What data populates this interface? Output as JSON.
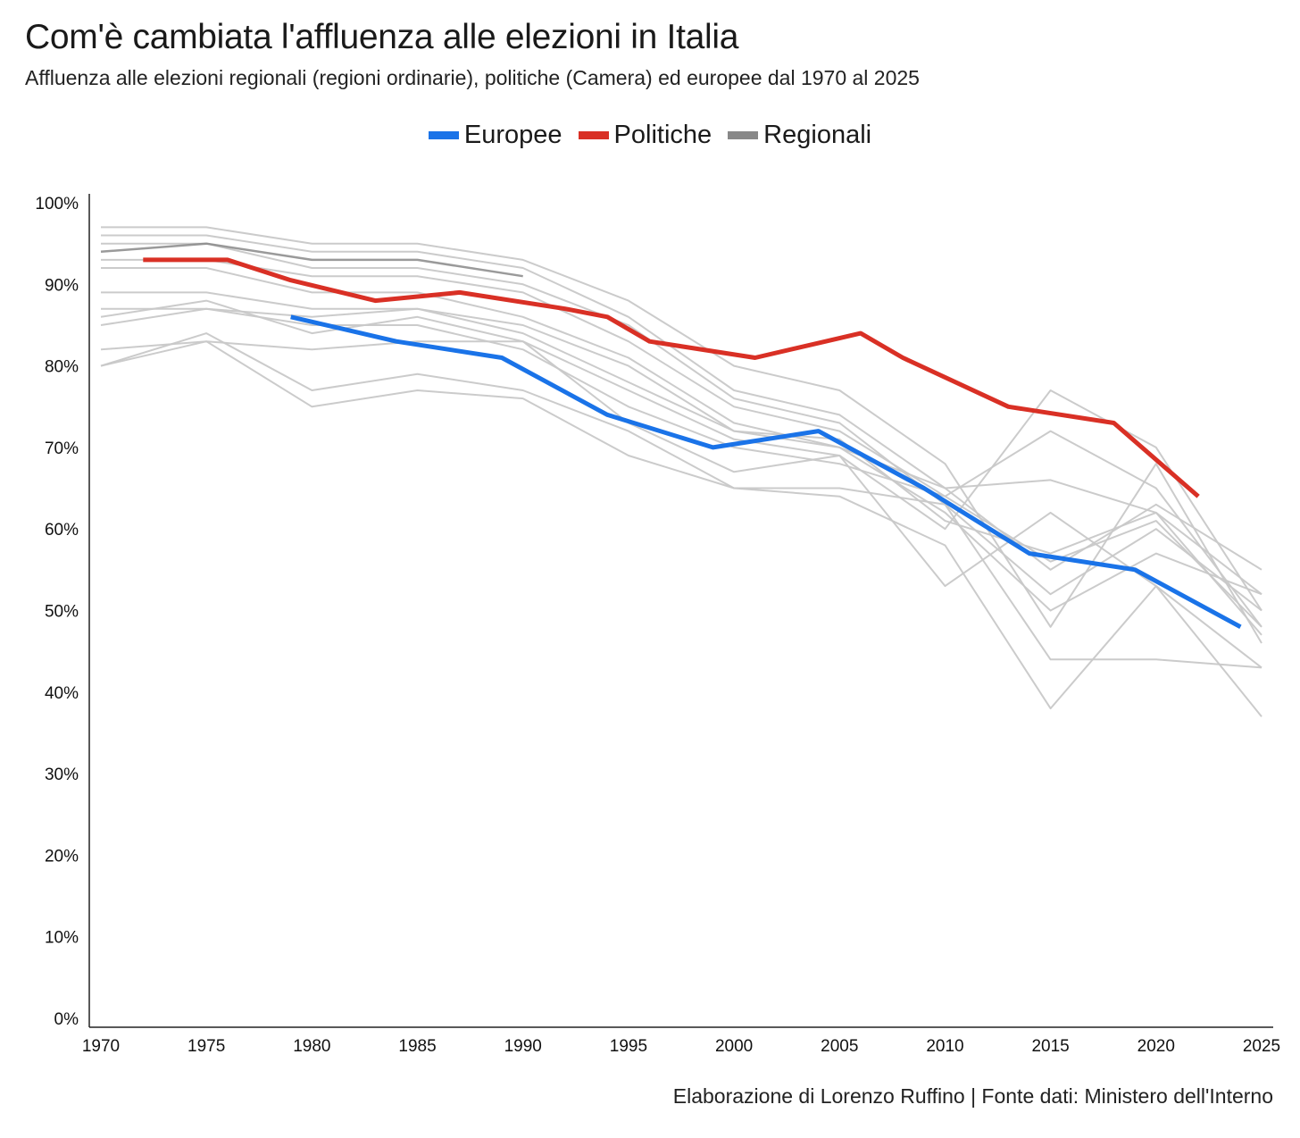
{
  "title": "Com'è cambiata l'affluenza alle elezioni in Italia",
  "subtitle": "Affluenza alle elezioni regionali (regioni ordinarie), politiche (Camera) ed europee dal 1970 al 2025",
  "source": "Elaborazione di Lorenzo Ruffino | Fonte dati: Ministero dell'Interno",
  "colors": {
    "europee": "#1a73e8",
    "politiche": "#d93025",
    "regionali": "#888888",
    "regional_lines": "#c8c8c8"
  },
  "legend": [
    {
      "label": "Europee",
      "color": "#1a73e8"
    },
    {
      "label": "Politiche",
      "color": "#d93025"
    },
    {
      "label": "Regionali",
      "color": "#888888"
    }
  ],
  "chart_data": {
    "type": "line",
    "title": "Com'è cambiata l'affluenza alle elezioni in Italia",
    "xlabel": "",
    "ylabel": "",
    "xlim": [
      1970,
      2025
    ],
    "ylim": [
      0,
      100
    ],
    "x_ticks": [
      1970,
      1975,
      1980,
      1985,
      1990,
      1995,
      2000,
      2005,
      2010,
      2015,
      2020,
      2025
    ],
    "y_ticks": [
      0,
      10,
      20,
      30,
      40,
      50,
      60,
      70,
      80,
      90,
      100
    ],
    "y_tick_labels": [
      "0%",
      "10%",
      "20%",
      "30%",
      "40%",
      "50%",
      "60%",
      "70%",
      "80%",
      "90%",
      "100%"
    ],
    "series": [
      {
        "name": "Europee",
        "color": "#1a73e8",
        "x": [
          1979,
          1984,
          1989,
          1994,
          1999,
          2004,
          2009,
          2014,
          2019,
          2024
        ],
        "values": [
          86,
          83,
          81,
          74,
          70,
          72,
          65,
          57,
          55,
          48
        ]
      },
      {
        "name": "Politiche",
        "color": "#d93025",
        "x": [
          1972,
          1976,
          1979,
          1983,
          1987,
          1992,
          1994,
          1996,
          2001,
          2006,
          2008,
          2013,
          2018,
          2022
        ],
        "values": [
          93,
          93,
          90.5,
          88,
          89,
          87,
          86,
          83,
          81,
          84,
          81,
          75,
          73,
          64
        ]
      },
      {
        "name": "Regionali",
        "color": "#888888",
        "x": [
          1970,
          1975,
          1980,
          1985,
          1990
        ],
        "values": [
          94,
          95,
          93,
          93,
          91
        ]
      },
      {
        "name": "Regionali",
        "color": "#c8c8c8",
        "x": [
          1970,
          1975,
          1980,
          1985,
          1990,
          1995,
          2000,
          2005,
          2010,
          2015,
          2020,
          2025
        ],
        "values": [
          97,
          97,
          95,
          95,
          93,
          88,
          80,
          77,
          68,
          48,
          68,
          46
        ]
      },
      {
        "name": "Regionali",
        "color": "#c8c8c8",
        "x": [
          1970,
          1975,
          1980,
          1985,
          1990,
          1995,
          2000,
          2005,
          2010,
          2015,
          2020,
          2025
        ],
        "values": [
          96,
          96,
          94,
          94,
          92,
          86,
          77,
          74,
          65,
          55,
          63,
          55
        ]
      },
      {
        "name": "Regionali",
        "color": "#c8c8c8",
        "x": [
          1970,
          1975,
          1980,
          1985,
          1990,
          1995,
          2000,
          2005,
          2010,
          2015,
          2020,
          2025
        ],
        "values": [
          95,
          95,
          92,
          92,
          90,
          85,
          76,
          73,
          63,
          52,
          60,
          50
        ]
      },
      {
        "name": "Regionali",
        "color": "#c8c8c8",
        "x": [
          1970,
          1975,
          1980,
          1985,
          1990,
          1995,
          2000,
          2005,
          2010,
          2015,
          2020,
          2025
        ],
        "values": [
          93,
          93,
          91,
          91,
          89,
          83,
          75,
          72,
          64,
          56,
          61,
          48
        ]
      },
      {
        "name": "Regionali",
        "color": "#c8c8c8",
        "x": [
          1970,
          1975,
          1980,
          1985,
          1990,
          1995,
          2000,
          2005,
          2010,
          2015,
          2020,
          2025
        ],
        "values": [
          92,
          92,
          89,
          89,
          86,
          81,
          73,
          70,
          62,
          50,
          57,
          52
        ]
      },
      {
        "name": "Regionali",
        "color": "#c8c8c8",
        "x": [
          1970,
          1975,
          1980,
          1985,
          1990,
          1995,
          2000,
          2005,
          2010,
          2015,
          2020,
          2025
        ],
        "values": [
          89,
          89,
          87,
          87,
          85,
          80,
          72,
          71,
          61,
          57,
          62,
          47
        ]
      },
      {
        "name": "Regionali",
        "color": "#c8c8c8",
        "x": [
          1970,
          1975,
          1980,
          1985,
          1990,
          1995,
          2000,
          2005,
          2010,
          2015,
          2020,
          2025
        ],
        "values": [
          87,
          87,
          86,
          87,
          84,
          78,
          72,
          70,
          65,
          66,
          62,
          52
        ]
      },
      {
        "name": "Regionali",
        "color": "#c8c8c8",
        "x": [
          1970,
          1975,
          1980,
          1985,
          1990,
          1995,
          2000,
          2005,
          2010,
          2015,
          2020,
          2025
        ],
        "values": [
          86,
          88,
          84,
          86,
          83,
          77,
          71,
          69,
          53,
          62,
          53,
          43
        ]
      },
      {
        "name": "Regionali",
        "color": "#c8c8c8",
        "x": [
          1970,
          1975,
          1980,
          1985,
          1990,
          1995,
          2000,
          2005,
          2010,
          2015,
          2020,
          2025
        ],
        "values": [
          85,
          87,
          85,
          85,
          82,
          75,
          70,
          68,
          64,
          72,
          65,
          48
        ]
      },
      {
        "name": "Regionali",
        "color": "#c8c8c8",
        "x": [
          1970,
          1975,
          1980,
          1985,
          1990,
          1995,
          2000,
          2005,
          2010,
          2015,
          2020,
          2025
        ],
        "values": [
          82,
          83,
          82,
          83,
          83,
          73,
          67,
          69,
          60,
          77,
          70,
          50
        ]
      },
      {
        "name": "Regionali",
        "color": "#c8c8c8",
        "x": [
          1970,
          1975,
          1980,
          1985,
          1990,
          1995,
          2000,
          2005,
          2010,
          2015,
          2020,
          2025
        ],
        "values": [
          80,
          84,
          77,
          79,
          77,
          72,
          65,
          65,
          63,
          44,
          44,
          43
        ]
      },
      {
        "name": "Regionali",
        "color": "#c8c8c8",
        "x": [
          1970,
          1975,
          1980,
          1985,
          1990,
          1995,
          2000,
          2005,
          2010,
          2015,
          2020,
          2025
        ],
        "values": [
          80,
          83,
          75,
          77,
          76,
          69,
          65,
          64,
          58,
          38,
          53,
          37
        ]
      }
    ]
  }
}
